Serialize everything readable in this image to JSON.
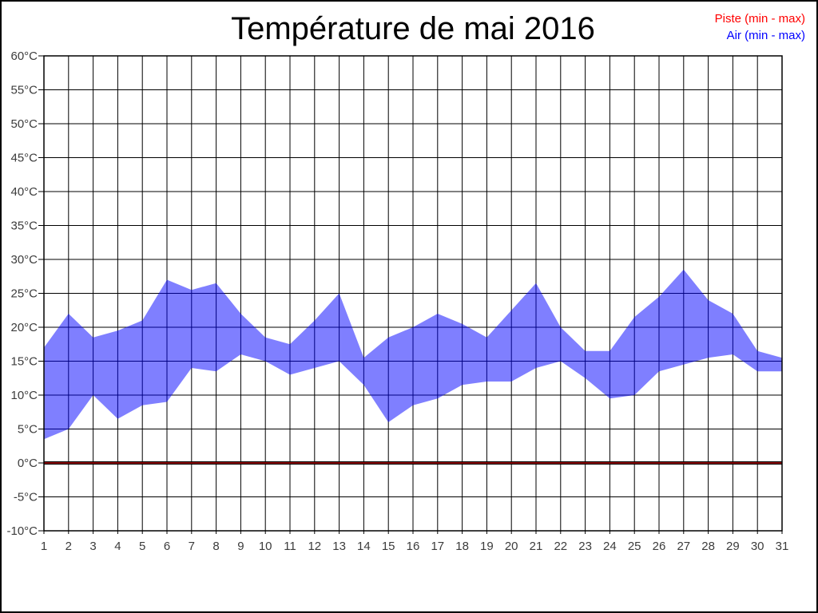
{
  "title": "Température de mai 2016",
  "legend": {
    "piste_label": "Piste (min - max)",
    "air_label": "Air (min - max)",
    "piste_color": "#ff0000",
    "air_color": "#0000ff"
  },
  "chart_data": {
    "type": "area",
    "title": "Température de mai 2016",
    "xlabel": "",
    "ylabel": "",
    "ylim": [
      -10,
      60
    ],
    "y_tick_step": 5,
    "grid": true,
    "legend_position": "top-right",
    "x": [
      1,
      2,
      3,
      4,
      5,
      6,
      7,
      8,
      9,
      10,
      11,
      12,
      13,
      14,
      15,
      16,
      17,
      18,
      19,
      20,
      21,
      22,
      23,
      24,
      25,
      26,
      27,
      28,
      29,
      30,
      31
    ],
    "x_tick_labels": [
      "1",
      "2",
      "3",
      "4",
      "5",
      "6",
      "7",
      "8",
      "9",
      "10",
      "11",
      "12",
      "13",
      "14",
      "15",
      "16",
      "17",
      "18",
      "19",
      "20",
      "21",
      "22",
      "23",
      "24",
      "25",
      "26",
      "27",
      "28",
      "29",
      "30",
      "31"
    ],
    "y_tick_labels": [
      "60°C",
      "55°C",
      "50°C",
      "45°C",
      "40°C",
      "35°C",
      "30°C",
      "25°C",
      "20°C",
      "15°C",
      "10°C",
      "5°C",
      "0°C",
      "-5°C",
      "-10°C"
    ],
    "series": [
      {
        "name": "Air (min - max)",
        "color": "#0000ff",
        "fill_opacity": 0.5,
        "min": [
          3.5,
          5,
          10,
          6.5,
          8.5,
          9,
          14,
          13.5,
          16,
          15,
          13,
          14,
          15,
          11.5,
          6,
          8.5,
          9.5,
          11.5,
          12,
          12,
          14,
          15,
          12.5,
          9.5,
          10,
          13.5,
          14.5,
          15.5,
          16,
          13.5,
          13.5
        ],
        "max": [
          17,
          22,
          18.5,
          19.5,
          21,
          27,
          25.5,
          26.5,
          22,
          18.5,
          17.5,
          21,
          25,
          15.5,
          18.5,
          20,
          22,
          20.5,
          18.5,
          22.5,
          26.5,
          20,
          16.5,
          16.5,
          21.5,
          24.5,
          28.5,
          24,
          22,
          16.5,
          15.5
        ]
      },
      {
        "name": "Piste (min - max)",
        "color": "#ff0000",
        "min": 0,
        "max": 0
      }
    ]
  }
}
